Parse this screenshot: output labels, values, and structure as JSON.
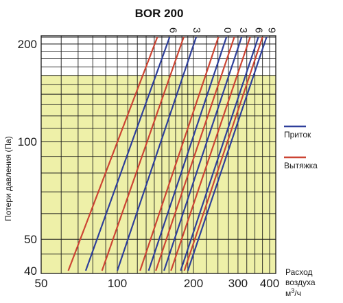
{
  "chart_data": {
    "type": "line",
    "title": "BOR 200",
    "ylabel": "Потери давления (Па)",
    "xlabel_lines": [
      "Расход",
      "воздуха",
      "м3/ч"
    ],
    "x_scale": "log",
    "y_scale": "log",
    "xlim": [
      50,
      400
    ],
    "ylim": [
      40,
      230
    ],
    "x_ticks": [
      {
        "value": 50,
        "label": "50"
      },
      {
        "value": 100,
        "label": "100"
      },
      {
        "value": 200,
        "label": "200"
      },
      {
        "value": 300,
        "label": "300"
      },
      {
        "value": 400,
        "label": "400"
      }
    ],
    "y_ticks": [
      {
        "value": 40,
        "label": "40"
      },
      {
        "value": 50,
        "label": "50"
      },
      {
        "value": 100,
        "label": "100"
      },
      {
        "value": 200,
        "label": "200"
      }
    ],
    "shaded_region": {
      "y_max": 160,
      "color": "#eef0a8"
    },
    "grid": true,
    "legend": {
      "placement": "right",
      "entries": [
        {
          "label": "Приток",
          "color": "#2e3f9a"
        },
        {
          "label": "Вытяжка",
          "color": "#cc4433"
        }
      ]
    },
    "series": [
      {
        "label": "6",
        "type": "Вытяжка",
        "points": [
          [
            64,
            40
          ],
          [
            144,
            210
          ]
        ]
      },
      {
        "label": "6",
        "type": "Приток",
        "points": [
          [
            75,
            40
          ],
          [
            161,
            210
          ]
        ]
      },
      {
        "label": "3",
        "type": "Вытяжка",
        "points": [
          [
            87,
            40
          ],
          [
            183,
            210
          ]
        ]
      },
      {
        "label": "3",
        "type": "Приток",
        "points": [
          [
            100,
            40
          ],
          [
            205,
            210
          ]
        ]
      },
      {
        "label": "0",
        "type": "Вытяжка",
        "points": [
          [
            123,
            40
          ],
          [
            251,
            210
          ]
        ]
      },
      {
        "label": "0",
        "type": "Приток",
        "points": [
          [
            133,
            40
          ],
          [
            270,
            210
          ]
        ]
      },
      {
        "label": "3",
        "type": "Вытяжка",
        "points": [
          [
            142,
            40
          ],
          [
            290,
            210
          ]
        ]
      },
      {
        "label": "3",
        "type": "Приток",
        "points": [
          [
            153,
            40
          ],
          [
            310,
            210
          ]
        ]
      },
      {
        "label": "6",
        "type": "Вытяжка",
        "points": [
          [
            163,
            40
          ],
          [
            335,
            210
          ]
        ]
      },
      {
        "label": "6",
        "type": "Приток",
        "points": [
          [
            178,
            40
          ],
          [
            361,
            210
          ]
        ]
      },
      {
        "label": "9",
        "type": "Вытяжка",
        "points": [
          [
            184,
            40
          ],
          [
            375,
            210
          ]
        ]
      },
      {
        "label": "9",
        "type": "Приток",
        "points": [
          [
            190,
            40
          ],
          [
            389,
            210
          ]
        ]
      }
    ],
    "curve_labels": [
      {
        "text": "6",
        "x": 161
      },
      {
        "text": "3",
        "x": 200
      },
      {
        "text": "0",
        "x": 265
      },
      {
        "text": "3",
        "x": 306
      },
      {
        "text": "6",
        "x": 352
      },
      {
        "text": "9",
        "x": 396
      }
    ]
  }
}
